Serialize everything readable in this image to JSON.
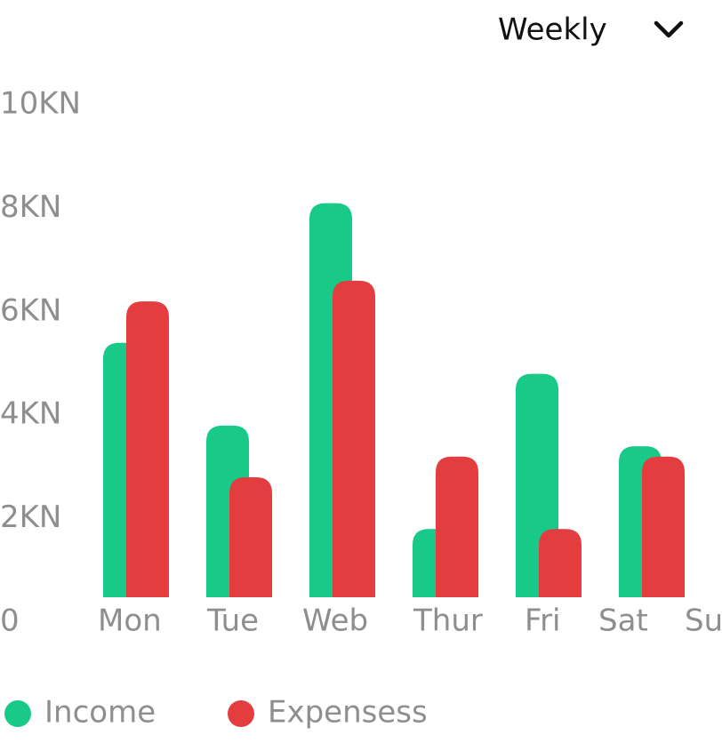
{
  "chart_data": {
    "type": "bar",
    "filter": "Weekly",
    "categories": [
      "Mon",
      "Tue",
      "Web",
      "Thur",
      "Fri",
      "Sat",
      "Sun"
    ],
    "series": [
      {
        "name": "Income",
        "color": "#19c987",
        "values": [
          5400,
          3800,
          8100,
          1800,
          4800,
          3400,
          null
        ]
      },
      {
        "name": "Expensess",
        "color": "#e33d3f",
        "values": [
          6200,
          2800,
          6600,
          3200,
          1800,
          3200,
          null
        ]
      }
    ],
    "ylim": [
      0,
      10000
    ],
    "yticks": [
      0,
      {
        "value": 2000,
        "label": "2KN"
      },
      {
        "value": 4000,
        "label": "4KN"
      },
      {
        "value": 6000,
        "label": "6KN"
      },
      {
        "value": 8000,
        "label": "8KN"
      },
      {
        "value": 10000,
        "label": "10KN"
      }
    ],
    "grid": false
  }
}
